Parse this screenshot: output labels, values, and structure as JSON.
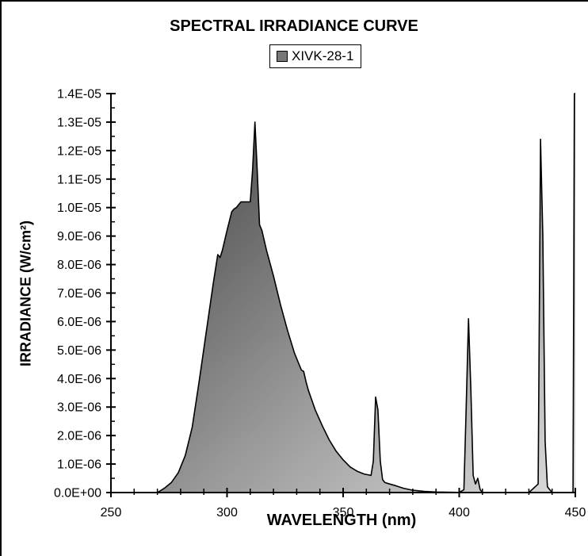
{
  "chart_data": {
    "type": "area",
    "title": "SPECTRAL IRRADIANCE CURVE",
    "xlabel": "WAVELENGTH  (nm)",
    "ylabel": "IRRADIANCE (W/cm²)",
    "xlim": [
      250,
      450
    ],
    "ylim": [
      0,
      1.4e-05
    ],
    "x_ticks": [
      250,
      300,
      350,
      400,
      450
    ],
    "x_tick_labels": [
      "250",
      "300",
      "350",
      "400",
      "450"
    ],
    "y_ticks": [
      0,
      1e-06,
      2e-06,
      3e-06,
      4e-06,
      5e-06,
      6e-06,
      7e-06,
      8e-06,
      9e-06,
      1e-05,
      1.1e-05,
      1.2e-05,
      1.3e-05,
      1.4e-05
    ],
    "y_tick_labels": [
      "0.0E+00",
      "1.0E-06",
      "2.0E-06",
      "3.0E-06",
      "4.0E-06",
      "5.0E-06",
      "6.0E-06",
      "7.0E-06",
      "8.0E-06",
      "9.0E-06",
      "1.0E-05",
      "1.1E-05",
      "1.2E-05",
      "1.3E-05",
      "1.4E-05"
    ],
    "grid": false,
    "legend_position": "top-center",
    "series": [
      {
        "name": "XIVK-28-1",
        "color": "#777777",
        "x": [
          270,
          273,
          276,
          279,
          282,
          285,
          288,
          291,
          294,
          296,
          297,
          298,
          300,
          302,
          303,
          304,
          305,
          306,
          308,
          310,
          311,
          312,
          313,
          314,
          315,
          317,
          320,
          323,
          326,
          329,
          332,
          333,
          334,
          335,
          338,
          341,
          344,
          347,
          350,
          353,
          356,
          359,
          362,
          363,
          364,
          365,
          366,
          367,
          368,
          370,
          373,
          376,
          380,
          385,
          390,
          395,
          400,
          402,
          403,
          404,
          405,
          406,
          407,
          408,
          409,
          410,
          420,
          430,
          434,
          435,
          436,
          437,
          438,
          440,
          445,
          449,
          449.6,
          450
        ],
        "y": [
          0,
          1.5e-07,
          3.5e-07,
          7e-07,
          1.3e-06,
          2.3e-06,
          3.9e-06,
          5.6e-06,
          7.3e-06,
          8.35e-06,
          8.25e-06,
          8.5e-06,
          9.2e-06,
          9.85e-06,
          9.95e-06,
          1e-05,
          1.01e-05,
          1.02e-05,
          1.02e-05,
          1.02e-05,
          1.13e-05,
          1.3e-05,
          1.13e-05,
          9.4e-06,
          9.2e-06,
          8.5e-06,
          7.6e-06,
          6.6e-06,
          5.7e-06,
          4.9e-06,
          4.3e-06,
          4.25e-06,
          3.9e-06,
          3.6e-06,
          2.9e-06,
          2.35e-06,
          1.85e-06,
          1.45e-06,
          1.15e-06,
          9e-07,
          7.5e-07,
          6.5e-07,
          6e-07,
          1.1e-06,
          3.35e-06,
          2.9e-06,
          1.1e-06,
          4.5e-07,
          3.5e-07,
          3e-07,
          2.3e-07,
          1.5e-07,
          8e-08,
          4e-08,
          2e-08,
          1e-08,
          5e-09,
          1e-07,
          3e-06,
          6.1e-06,
          3.6e-06,
          6e-07,
          3e-07,
          5e-07,
          1e-07,
          0,
          0,
          0,
          3e-07,
          1.24e-05,
          9e-06,
          1.8e-06,
          2e-07,
          0,
          0,
          0,
          1.4e-05,
          1.4e-05
        ]
      }
    ]
  }
}
